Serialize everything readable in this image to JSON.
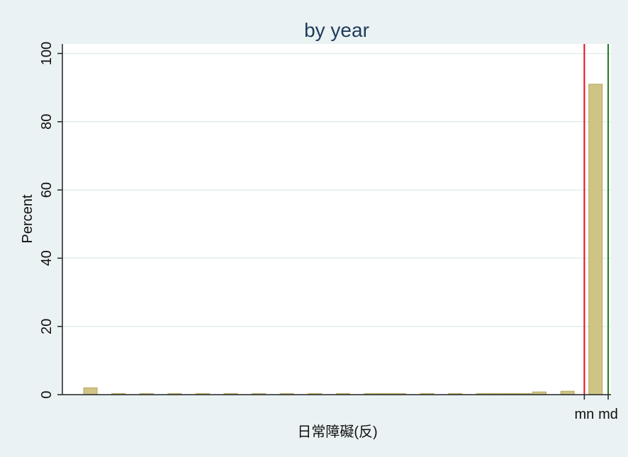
{
  "chart_data": {
    "type": "bar",
    "title": "by year",
    "xlabel": "日常障礙(反)",
    "ylabel": "Percent",
    "ylim": [
      0,
      102.8
    ],
    "yticks": [
      0,
      20,
      40,
      60,
      80,
      100
    ],
    "grid": true,
    "colors": {
      "background": "#eaf2f3",
      "plot_background": "#ffffff",
      "bar_fill": "#cfc386",
      "bar_stroke": "#b5a85f",
      "grid": "#e4ecee",
      "axis": "#222222",
      "mean_line": "#e0101a",
      "median_line": "#1b7a1b"
    },
    "bars": [
      {
        "x": 1,
        "value": 2.0
      },
      {
        "x": 2,
        "value": 0.2
      },
      {
        "x": 3,
        "value": 0.2
      },
      {
        "x": 4,
        "value": 0.2
      },
      {
        "x": 5,
        "value": 0.2
      },
      {
        "x": 6,
        "value": 0.2
      },
      {
        "x": 7,
        "value": 0.2
      },
      {
        "x": 8,
        "value": 0.2
      },
      {
        "x": 9,
        "value": 0.2
      },
      {
        "x": 10,
        "value": 0.2
      },
      {
        "x": 11,
        "value": 0.2
      },
      {
        "x": 11.5,
        "value": 0.2
      },
      {
        "x": 12,
        "value": 0.2
      },
      {
        "x": 13,
        "value": 0.2
      },
      {
        "x": 14,
        "value": 0.2
      },
      {
        "x": 15,
        "value": 0.2
      },
      {
        "x": 15.5,
        "value": 0.2
      },
      {
        "x": 16,
        "value": 0.2
      },
      {
        "x": 16.5,
        "value": 0.2
      },
      {
        "x": 17,
        "value": 0.8
      },
      {
        "x": 18,
        "value": 1.0
      },
      {
        "x": 19,
        "value": 91.0
      }
    ],
    "xlim": [
      0,
      19.55
    ],
    "reference_lines": [
      {
        "label": "mn",
        "x": 18.6,
        "color": "mean_line"
      },
      {
        "label": "md",
        "x": 19.45,
        "color": "median_line"
      }
    ]
  }
}
